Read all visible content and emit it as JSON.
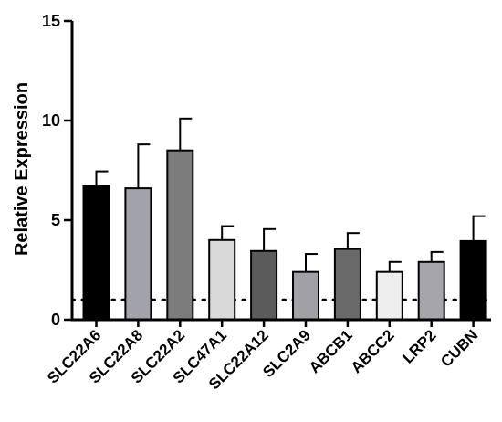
{
  "chart_data": {
    "type": "bar",
    "title": "",
    "xlabel": "",
    "ylabel": "Relative Expression",
    "ylim": [
      0,
      15
    ],
    "yticks": [
      0,
      5,
      10,
      15
    ],
    "categories": [
      "SLC22A6",
      "SLC22A8",
      "SLC22A2",
      "SLC47A1",
      "SLC22A12",
      "SLC2A9",
      "ABCB1",
      "ABCC2",
      "LRP2",
      "CUBN"
    ],
    "values": [
      6.7,
      6.6,
      8.5,
      4.0,
      3.45,
      2.4,
      3.55,
      2.4,
      2.9,
      3.95
    ],
    "errors": [
      0.75,
      2.2,
      1.6,
      0.7,
      1.1,
      0.9,
      0.8,
      0.5,
      0.5,
      1.25
    ],
    "bar_colors": [
      "#000000",
      "#a2a2aa",
      "#7c7c7c",
      "#d9d9d9",
      "#5b5b5b",
      "#a0a0a6",
      "#6a6a6a",
      "#eeeeee",
      "#a5a5ab",
      "#000000"
    ],
    "reference_line": 1,
    "grid": false,
    "legend": "none"
  }
}
